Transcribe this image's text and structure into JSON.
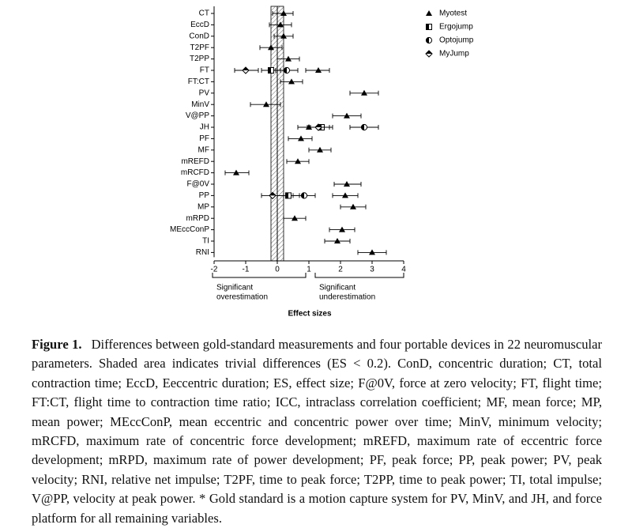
{
  "chart_data": {
    "type": "forest",
    "categories": [
      "CT",
      "EccD",
      "ConD",
      "T2PF",
      "T2PP",
      "FT",
      "FT:CT",
      "PV",
      "MinV",
      "V@PP",
      "JH",
      "PF",
      "MF",
      "mREFD",
      "mRCFD",
      "F@0V",
      "PP",
      "MP",
      "mRPD",
      "MEccConP",
      "TI",
      "RNI"
    ],
    "series": [
      {
        "name": "Myotest",
        "color": "#000000",
        "values": [
          0.2,
          0.1,
          0.2,
          -0.2,
          0.35,
          1.3,
          0.45,
          2.75,
          -0.35,
          2.2,
          1.0,
          0.75,
          1.35,
          0.65,
          -1.3,
          2.2,
          2.15,
          2.4,
          0.55,
          2.05,
          1.9,
          3.0
        ],
        "lower": [
          -0.15,
          -0.25,
          -0.1,
          -0.55,
          0.0,
          0.9,
          0.1,
          2.3,
          -0.85,
          1.75,
          0.65,
          0.35,
          1.0,
          0.3,
          -1.65,
          1.8,
          1.75,
          2.0,
          0.2,
          1.65,
          1.5,
          2.55
        ],
        "upper": [
          0.5,
          0.45,
          0.5,
          0.15,
          0.7,
          1.65,
          0.8,
          3.2,
          0.1,
          2.65,
          1.35,
          1.1,
          1.7,
          1.0,
          -0.9,
          2.65,
          2.55,
          2.8,
          0.9,
          2.45,
          2.3,
          3.45
        ]
      },
      {
        "name": "Ergojump",
        "color": "#000000",
        "values": [
          null,
          null,
          null,
          null,
          null,
          -0.2,
          null,
          null,
          null,
          null,
          1.4,
          null,
          null,
          null,
          null,
          null,
          0.35,
          null,
          null,
          null,
          null,
          null
        ],
        "lower": [
          null,
          null,
          null,
          null,
          null,
          -0.5,
          null,
          null,
          null,
          null,
          1.05,
          null,
          null,
          null,
          null,
          null,
          0.0,
          null,
          null,
          null,
          null,
          null
        ],
        "upper": [
          null,
          null,
          null,
          null,
          null,
          0.1,
          null,
          null,
          null,
          null,
          1.75,
          null,
          null,
          null,
          null,
          null,
          0.7,
          null,
          null,
          null,
          null,
          null
        ]
      },
      {
        "name": "Optojump",
        "color": "#000000",
        "values": [
          null,
          null,
          null,
          null,
          null,
          0.3,
          null,
          null,
          null,
          null,
          2.75,
          null,
          null,
          null,
          null,
          null,
          0.85,
          null,
          null,
          null,
          null,
          null
        ],
        "lower": [
          null,
          null,
          null,
          null,
          null,
          -0.05,
          null,
          null,
          null,
          null,
          2.3,
          null,
          null,
          null,
          null,
          null,
          0.5,
          null,
          null,
          null,
          null,
          null
        ],
        "upper": [
          null,
          null,
          null,
          null,
          null,
          0.65,
          null,
          null,
          null,
          null,
          3.2,
          null,
          null,
          null,
          null,
          null,
          1.2,
          null,
          null,
          null,
          null,
          null
        ]
      },
      {
        "name": "MyJump",
        "color": "#000000",
        "values": [
          null,
          null,
          null,
          null,
          null,
          -1.0,
          null,
          null,
          null,
          null,
          1.3,
          null,
          null,
          null,
          null,
          null,
          -0.15,
          null,
          null,
          null,
          null,
          null
        ],
        "lower": [
          null,
          null,
          null,
          null,
          null,
          -1.35,
          null,
          null,
          null,
          null,
          0.95,
          null,
          null,
          null,
          null,
          null,
          -0.5,
          null,
          null,
          null,
          null,
          null
        ],
        "upper": [
          null,
          null,
          null,
          null,
          null,
          -0.6,
          null,
          null,
          null,
          null,
          1.65,
          null,
          null,
          null,
          null,
          null,
          0.2,
          null,
          null,
          null,
          null,
          null
        ]
      }
    ],
    "trivial_band": [
      -0.2,
      0.2
    ],
    "xlim": [
      -2,
      4
    ],
    "xticks": [
      -2,
      -1,
      0,
      1,
      2,
      3,
      4
    ],
    "xlabel": "Effect sizes",
    "annotations": [
      [
        "Significant",
        "overestimation"
      ],
      [
        "Significant",
        "underestimation"
      ]
    ],
    "legend": "top-right"
  },
  "caption": {
    "label": "Figure 1.",
    "text": "Differences between gold-standard measurements and four portable devices in 22 neuromuscular parameters. Shaded area indicates trivial differences (ES < 0.2). ConD, concentric duration; CT, total contraction time; EccD, Eeccentric duration; ES, effect size; F@0V, force at zero velocity; FT, flight time; FT:CT, flight time to contraction time ratio; ICC, intraclass correlation coefficient; MF, mean force; MP, mean power; MEccConP, mean eccentric and concentric power over time; MinV, minimum velocity; mRCFD, maximum rate of concentric force development; mREFD, maximum rate of eccentric force development; mRPD, maximum rate of power development; PF, peak force; PP, peak power; PV, peak velocity; RNI, relative net impulse; T2PF, time to peak force; T2PP, time to peak power; TI, total impulse; V@PP, velocity at peak power. * Gold standard is a motion capture system for PV, MinV, and JH, and force platform for all remaining variables."
  }
}
